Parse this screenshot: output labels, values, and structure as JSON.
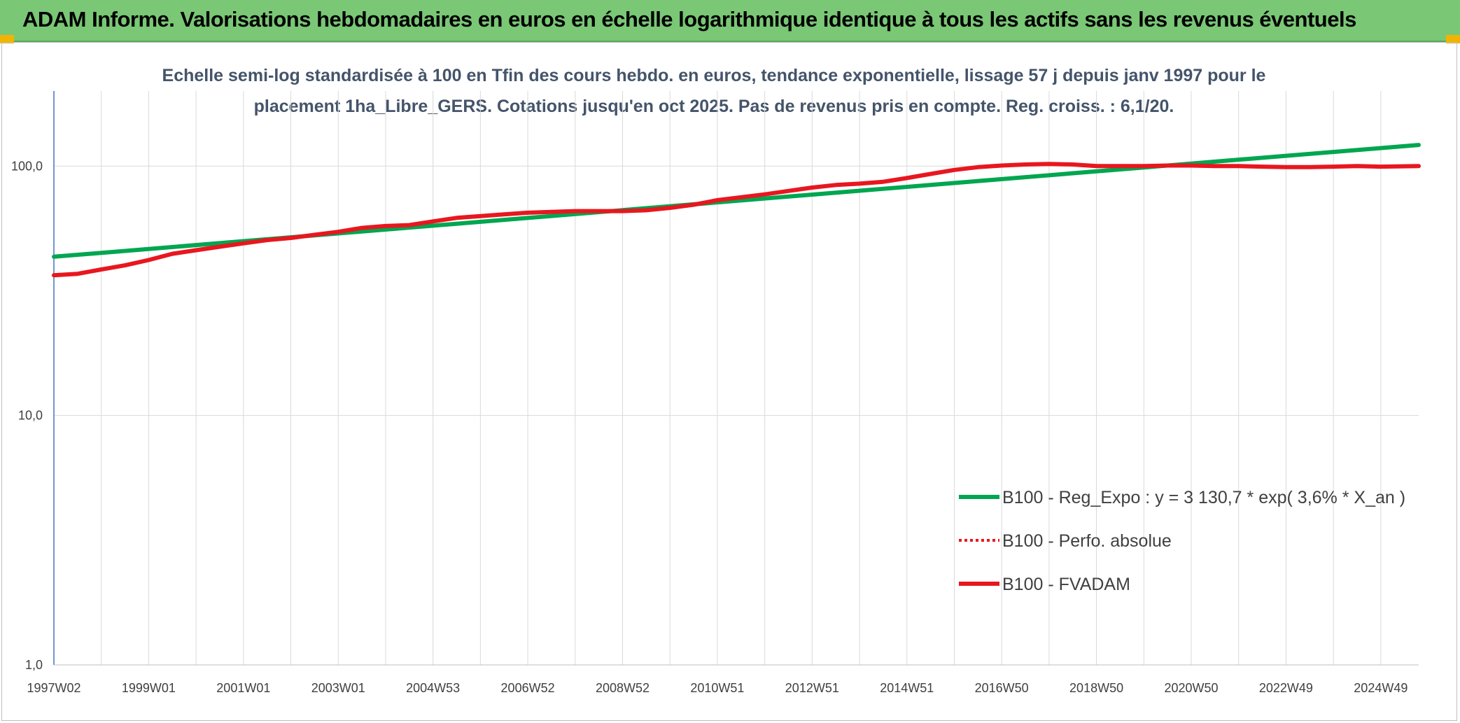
{
  "header": {
    "title": "ADAM Informe. Valorisations hebdomadaires en euros en échelle logarithmique identique à tous les actifs sans les revenus éventuels"
  },
  "colors": {
    "header_bg": "#7ac776",
    "regression": "#00a650",
    "fvadam": "#e8171f",
    "perfo": "#e8171f",
    "title_text": "#44546a",
    "grid": "#d9d9d9",
    "y_axis": "#4472c4"
  },
  "chart_data": {
    "type": "line",
    "title": "Echelle semi-log standardisée à 100 en Tfin des cours hebdo. en euros, tendance exponentielle, lissage 57 j depuis janv 1997 pour le placement 1ha_Libre_GERS. Cotations jusqu'en oct 2025. Pas de revenus pris en compte. Reg. croiss. : 6,1/20.",
    "title_lines": [
      "Echelle semi-log standardisée à 100 en Tfin des cours hebdo. en euros, tendance exponentielle, lissage 57 j depuis janv 1997 pour le",
      "placement 1ha_Libre_GERS. Cotations jusqu'en oct 2025. Pas de revenus pris en compte. Reg. croiss. : 6,1/20."
    ],
    "y_scale": "log",
    "ylim": [
      1,
      200
    ],
    "y_ticks": [
      1,
      10,
      100
    ],
    "y_tick_labels": [
      "1,0",
      "10,0",
      "100,0"
    ],
    "xlim": [
      1997.0,
      2025.8
    ],
    "x_tick_labels": [
      "1997W02",
      "1999W01",
      "2001W01",
      "2003W01",
      "2004W53",
      "2006W52",
      "2008W52",
      "2010W51",
      "2012W51",
      "2014W51",
      "2016W50",
      "2018W50",
      "2020W50",
      "2022W49",
      "2024W49"
    ],
    "x_tick_years": [
      1997,
      1999,
      2001,
      2003,
      2005,
      2007,
      2009,
      2011,
      2013,
      2015,
      2017,
      2019,
      2021,
      2023,
      2025
    ],
    "legend_position": "center-right",
    "series": [
      {
        "name": "B100 - Reg_Expo : y = 3 130,7 * exp( 3,6% *  X_an )",
        "style": "solid-thick",
        "color": "#00a650",
        "x": [
          1997.0,
          2025.8
        ],
        "values": [
          43.3,
          121.5
        ]
      },
      {
        "name": "B100 - Perfo. absolue",
        "style": "dotted",
        "color": "#e8171f",
        "x": [],
        "values": []
      },
      {
        "name": "B100 - FVADAM",
        "style": "solid-thick",
        "color": "#e8171f",
        "x": [
          1997.0,
          1997.5,
          1998.0,
          1998.5,
          1999.0,
          1999.5,
          2000.0,
          2000.5,
          2001.0,
          2001.5,
          2002.0,
          2002.5,
          2003.0,
          2003.5,
          2004.0,
          2004.5,
          2005.0,
          2005.5,
          2006.0,
          2006.5,
          2007.0,
          2007.5,
          2008.0,
          2008.5,
          2009.0,
          2009.5,
          2010.0,
          2010.5,
          2011.0,
          2011.5,
          2012.0,
          2012.5,
          2013.0,
          2013.5,
          2014.0,
          2014.5,
          2015.0,
          2015.5,
          2016.0,
          2016.5,
          2017.0,
          2017.5,
          2018.0,
          2018.5,
          2019.0,
          2019.5,
          2020.0,
          2020.5,
          2021.0,
          2021.5,
          2022.0,
          2022.5,
          2023.0,
          2023.5,
          2024.0,
          2024.5,
          2025.0,
          2025.8
        ],
        "values": [
          36.5,
          37.0,
          38.5,
          40.0,
          42.0,
          44.5,
          46.0,
          47.5,
          49.0,
          50.5,
          51.5,
          53.0,
          54.5,
          56.5,
          57.5,
          58.0,
          60.0,
          62.0,
          63.0,
          64.0,
          65.0,
          65.5,
          66.0,
          66.0,
          66.0,
          66.5,
          68.0,
          70.0,
          73.0,
          75.0,
          77.0,
          79.5,
          82.0,
          84.0,
          85.0,
          86.5,
          89.5,
          93.0,
          96.5,
          99.0,
          100.5,
          101.5,
          102.0,
          101.5,
          100.0,
          100.0,
          100.0,
          100.5,
          100.5,
          100.0,
          100.0,
          99.5,
          99.0,
          99.0,
          99.5,
          100.0,
          99.5,
          100.0
        ]
      }
    ]
  }
}
